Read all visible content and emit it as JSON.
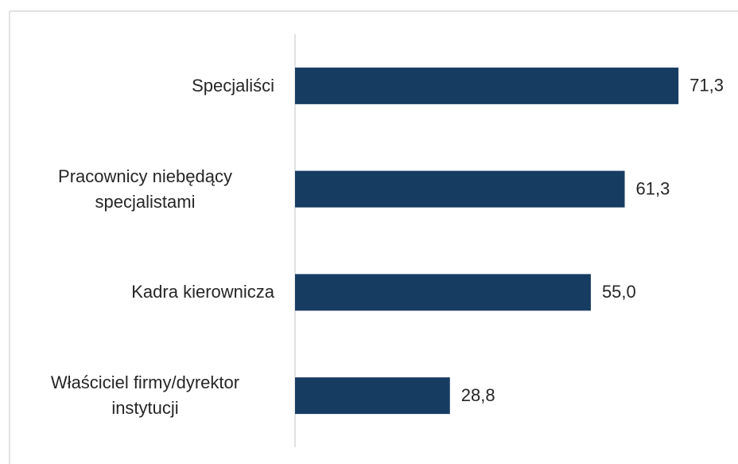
{
  "chart_data": {
    "type": "bar",
    "orientation": "horizontal",
    "categories": [
      "Specjaliści",
      "Pracownicy niebędący specjalistami",
      "Kadra kierownicza",
      "Właściciel firmy/dyrektor instytucji"
    ],
    "values": [
      71.3,
      61.3,
      55.0,
      28.8
    ],
    "value_labels": [
      "71,3",
      "61,3",
      "55,0",
      "28,8"
    ],
    "color": "#173c61",
    "xlim": [
      0,
      80
    ]
  }
}
